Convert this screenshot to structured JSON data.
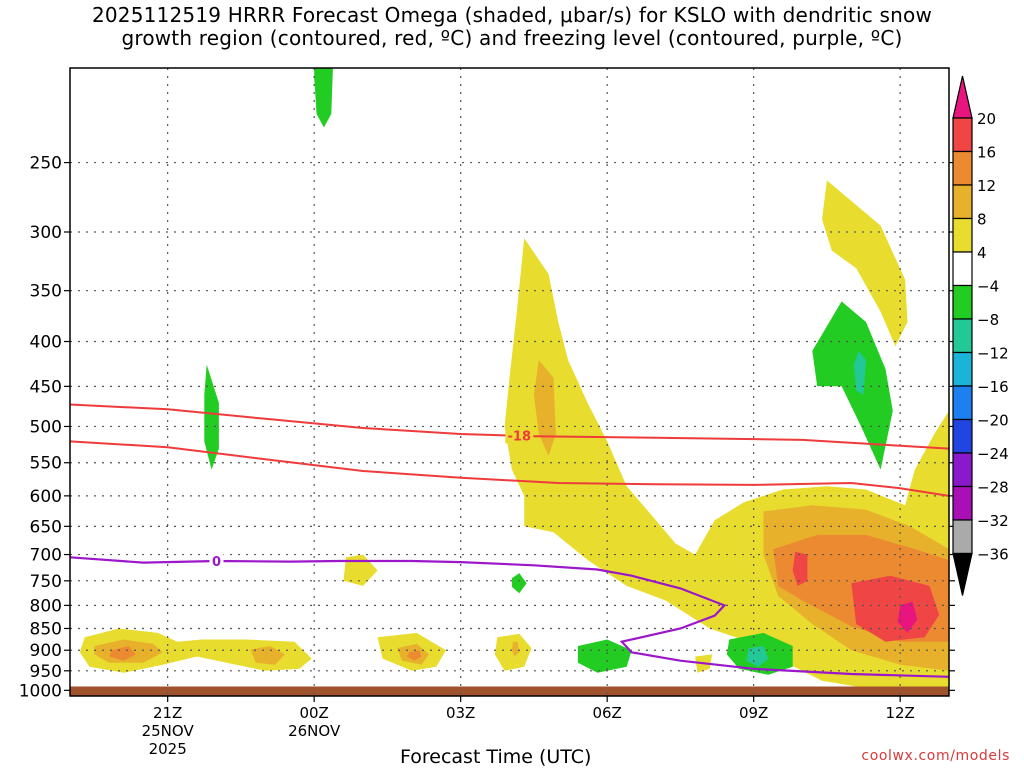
{
  "title": {
    "line1": "2025112519 HRRR Forecast Omega (shaded, μbar/s) for KSLO with dendritic snow",
    "line2": "growth region (contoured, red, ºC) and freezing level (contoured, purple, ºC)"
  },
  "credit": "coolwx.com/models",
  "chart_data": {
    "type": "heatmap",
    "title": "2025112519 HRRR Forecast Omega (shaded, μbar/s) for KSLO with dendritic snow growth region (contoured, red, ºC) and freezing level (contoured, purple, ºC)",
    "xlabel": "Forecast Time (UTC)",
    "ylabel": "",
    "x_range_hours_since_init": [
      0,
      18
    ],
    "y_scale": "log-pressure",
    "y_range_hPa": [
      195,
      1015
    ],
    "grid": true,
    "y_ticks": [
      250,
      300,
      350,
      400,
      450,
      500,
      550,
      600,
      650,
      700,
      750,
      800,
      850,
      900,
      950,
      1000
    ],
    "x_ticks": [
      {
        "hour": 2,
        "label": "21Z",
        "sub1": "25NOV",
        "sub2": "2025"
      },
      {
        "hour": 5,
        "label": "00Z",
        "sub1": "26NOV",
        "sub2": ""
      },
      {
        "hour": 8,
        "label": "03Z",
        "sub1": "",
        "sub2": ""
      },
      {
        "hour": 11,
        "label": "06Z",
        "sub1": "",
        "sub2": ""
      },
      {
        "hour": 14,
        "label": "09Z",
        "sub1": "",
        "sub2": ""
      },
      {
        "hour": 17,
        "label": "12Z",
        "sub1": "",
        "sub2": ""
      }
    ],
    "colorbar": {
      "levels": [
        20,
        16,
        12,
        8,
        4,
        -4,
        -8,
        -12,
        -16,
        -20,
        -24,
        -28,
        -32,
        -36
      ],
      "colors": [
        "#e8157f",
        "#f04545",
        "#eb8a30",
        "#e8b12c",
        "#e8dd2f",
        "#ffffff",
        "#22cc22",
        "#22c896",
        "#1ab4d8",
        "#1e7ff0",
        "#2145e0",
        "#8a19cc",
        "#a80fb5",
        "#aaaaaa",
        "#000000"
      ]
    },
    "surface_color": "#a0522d",
    "red_contours": [
      {
        "label": "-18",
        "label_at": [
          9.2,
          512
        ],
        "points": [
          [
            0,
            472
          ],
          [
            2,
            478
          ],
          [
            4,
            490
          ],
          [
            6,
            502
          ],
          [
            8,
            510
          ],
          [
            9.5,
            513
          ],
          [
            12,
            515
          ],
          [
            15,
            518
          ],
          [
            17,
            526
          ],
          [
            18,
            530
          ]
        ]
      },
      {
        "label": "",
        "points": [
          [
            0,
            520
          ],
          [
            2,
            528
          ],
          [
            4,
            545
          ],
          [
            6,
            562
          ],
          [
            8,
            572
          ],
          [
            10,
            580
          ],
          [
            12,
            582
          ],
          [
            14,
            583
          ],
          [
            16,
            580
          ],
          [
            17,
            588
          ],
          [
            18,
            600
          ]
        ]
      }
    ],
    "purple_contour": {
      "label": "0",
      "label_at": [
        3,
        712
      ],
      "points": [
        [
          0,
          705
        ],
        [
          1.5,
          715
        ],
        [
          3,
          712
        ],
        [
          4.5,
          713
        ],
        [
          5.5,
          712
        ],
        [
          7,
          712
        ],
        [
          8,
          714
        ],
        [
          9.5,
          720
        ],
        [
          10.8,
          728
        ],
        [
          11.5,
          740
        ],
        [
          12.5,
          765
        ],
        [
          13.4,
          800
        ],
        [
          13.2,
          822
        ],
        [
          12.5,
          850
        ],
        [
          11.3,
          880
        ],
        [
          11.5,
          905
        ],
        [
          12.5,
          925
        ],
        [
          14,
          945
        ],
        [
          16,
          958
        ],
        [
          18,
          965
        ]
      ]
    },
    "omega_regions": [
      {
        "value": -6,
        "points": [
          [
            5,
            184
          ],
          [
            5.4,
            184
          ],
          [
            5.35,
            220
          ],
          [
            5.2,
            228
          ],
          [
            5.05,
            220
          ],
          [
            5,
            200
          ]
        ]
      },
      {
        "value": -6,
        "points": [
          [
            2.8,
            425
          ],
          [
            3.05,
            470
          ],
          [
            3.05,
            530
          ],
          [
            2.9,
            560
          ],
          [
            2.75,
            520
          ],
          [
            2.75,
            460
          ]
        ]
      },
      {
        "value": 6,
        "points": [
          [
            9.3,
            305
          ],
          [
            9.8,
            335
          ],
          [
            10,
            380
          ],
          [
            10.2,
            420
          ],
          [
            10.6,
            470
          ],
          [
            11,
            520
          ],
          [
            11.4,
            585
          ],
          [
            12,
            640
          ],
          [
            12.4,
            680
          ],
          [
            12.8,
            700
          ],
          [
            13.2,
            640
          ],
          [
            13.8,
            610
          ],
          [
            14.6,
            590
          ],
          [
            15.5,
            585
          ],
          [
            16.3,
            590
          ],
          [
            17.1,
            615
          ],
          [
            17.3,
            560
          ],
          [
            17.7,
            510
          ],
          [
            18,
            480
          ],
          [
            18,
            990
          ],
          [
            16.1,
            990
          ],
          [
            15.4,
            975
          ],
          [
            14.5,
            920
          ],
          [
            13.9,
            880
          ],
          [
            13.1,
            850
          ],
          [
            12.2,
            790
          ],
          [
            11.4,
            760
          ],
          [
            10.6,
            710
          ],
          [
            9.9,
            660
          ],
          [
            9.3,
            650
          ],
          [
            9.3,
            600
          ],
          [
            9.05,
            560
          ],
          [
            8.9,
            500
          ],
          [
            9,
            440
          ],
          [
            9.15,
            370
          ]
        ]
      },
      {
        "value": 10,
        "points": [
          [
            9.6,
            420
          ],
          [
            9.9,
            440
          ],
          [
            9.95,
            510
          ],
          [
            9.8,
            540
          ],
          [
            9.6,
            510
          ],
          [
            9.5,
            460
          ]
        ]
      },
      {
        "value": 10,
        "points": [
          [
            14.2,
            625
          ],
          [
            15.2,
            615
          ],
          [
            16.3,
            622
          ],
          [
            17.2,
            650
          ],
          [
            18,
            690
          ],
          [
            18,
            950
          ],
          [
            17,
            935
          ],
          [
            16,
            900
          ],
          [
            15.2,
            840
          ],
          [
            14.5,
            780
          ],
          [
            14.2,
            700
          ]
        ]
      },
      {
        "value": 14,
        "points": [
          [
            14.4,
            690
          ],
          [
            15.3,
            665
          ],
          [
            16.3,
            665
          ],
          [
            17.3,
            690
          ],
          [
            18,
            710
          ],
          [
            18,
            880
          ],
          [
            17,
            880
          ],
          [
            16,
            845
          ],
          [
            15,
            790
          ],
          [
            14.5,
            760
          ]
        ]
      },
      {
        "value": 18,
        "points": [
          [
            16,
            755
          ],
          [
            16.8,
            740
          ],
          [
            17.6,
            760
          ],
          [
            17.8,
            820
          ],
          [
            17.5,
            870
          ],
          [
            16.7,
            880
          ],
          [
            16.1,
            840
          ]
        ]
      },
      {
        "value": 18,
        "points": [
          [
            14.85,
            695
          ],
          [
            15.1,
            700
          ],
          [
            15.1,
            750
          ],
          [
            14.9,
            760
          ],
          [
            14.8,
            730
          ]
        ]
      },
      {
        "value": 22,
        "points": [
          [
            17.0,
            800
          ],
          [
            17.25,
            792
          ],
          [
            17.35,
            830
          ],
          [
            17.15,
            860
          ],
          [
            16.95,
            835
          ]
        ]
      },
      {
        "value": 6,
        "points": [
          [
            15.5,
            262
          ],
          [
            16.6,
            295
          ],
          [
            17.1,
            340
          ],
          [
            17.15,
            380
          ],
          [
            16.9,
            405
          ],
          [
            16.6,
            370
          ],
          [
            16.1,
            330
          ],
          [
            15.6,
            315
          ],
          [
            15.4,
            290
          ]
        ]
      },
      {
        "value": -6,
        "points": [
          [
            15.8,
            360
          ],
          [
            16.3,
            380
          ],
          [
            16.7,
            430
          ],
          [
            16.85,
            480
          ],
          [
            16.6,
            560
          ],
          [
            16.2,
            500
          ],
          [
            15.8,
            450
          ],
          [
            15.3,
            450
          ],
          [
            15.2,
            410
          ]
        ]
      },
      {
        "value": -10,
        "points": [
          [
            16.15,
            410
          ],
          [
            16.3,
            420
          ],
          [
            16.25,
            460
          ],
          [
            16.1,
            455
          ],
          [
            16.05,
            425
          ]
        ]
      },
      {
        "value": 6,
        "points": [
          [
            0.3,
            870
          ],
          [
            1,
            850
          ],
          [
            1.8,
            860
          ],
          [
            2.2,
            880
          ],
          [
            2.7,
            875
          ],
          [
            3.6,
            875
          ],
          [
            4.6,
            880
          ],
          [
            4.95,
            920
          ],
          [
            4.7,
            945
          ],
          [
            4,
            950
          ],
          [
            3.4,
            935
          ],
          [
            2.6,
            915
          ],
          [
            1.9,
            935
          ],
          [
            1.1,
            955
          ],
          [
            0.4,
            940
          ],
          [
            0.2,
            905
          ]
        ]
      },
      {
        "value": 10,
        "points": [
          [
            0.5,
            890
          ],
          [
            1.1,
            875
          ],
          [
            1.7,
            885
          ],
          [
            1.9,
            905
          ],
          [
            1.5,
            930
          ],
          [
            0.8,
            930
          ],
          [
            0.5,
            910
          ]
        ]
      },
      {
        "value": 14,
        "points": [
          [
            0.85,
            900
          ],
          [
            1.2,
            890
          ],
          [
            1.35,
            910
          ],
          [
            1.1,
            925
          ],
          [
            0.8,
            915
          ]
        ]
      },
      {
        "value": 10,
        "points": [
          [
            3.7,
            898
          ],
          [
            4.1,
            890
          ],
          [
            4.4,
            910
          ],
          [
            4.2,
            935
          ],
          [
            3.8,
            930
          ]
        ]
      },
      {
        "value": 6,
        "points": [
          [
            6.3,
            870
          ],
          [
            7.1,
            860
          ],
          [
            7.7,
            900
          ],
          [
            7.5,
            940
          ],
          [
            7,
            950
          ],
          [
            6.4,
            920
          ]
        ]
      },
      {
        "value": 10,
        "points": [
          [
            6.7,
            895
          ],
          [
            7.1,
            885
          ],
          [
            7.35,
            910
          ],
          [
            7.2,
            935
          ],
          [
            6.8,
            925
          ]
        ]
      },
      {
        "value": 14,
        "points": [
          [
            6.95,
            905
          ],
          [
            7.15,
            900
          ],
          [
            7.2,
            915
          ],
          [
            7.05,
            925
          ],
          [
            6.9,
            915
          ]
        ]
      },
      {
        "value": 6,
        "points": [
          [
            5.65,
            705
          ],
          [
            6.0,
            700
          ],
          [
            6.3,
            730
          ],
          [
            6.0,
            760
          ],
          [
            5.6,
            750
          ]
        ]
      },
      {
        "value": 6,
        "points": [
          [
            8.75,
            870
          ],
          [
            9.2,
            862
          ],
          [
            9.45,
            895
          ],
          [
            9.3,
            940
          ],
          [
            8.9,
            950
          ],
          [
            8.7,
            910
          ]
        ]
      },
      {
        "value": 10,
        "points": [
          [
            9.07,
            880
          ],
          [
            9.17,
            880
          ],
          [
            9.2,
            905
          ],
          [
            9.1,
            915
          ],
          [
            9.05,
            900
          ]
        ]
      },
      {
        "value": -6,
        "points": [
          [
            9.05,
            745
          ],
          [
            9.2,
            735
          ],
          [
            9.35,
            755
          ],
          [
            9.2,
            775
          ],
          [
            9.05,
            762
          ]
        ]
      },
      {
        "value": -6,
        "points": [
          [
            10.4,
            890
          ],
          [
            11.0,
            875
          ],
          [
            11.5,
            900
          ],
          [
            11.4,
            940
          ],
          [
            10.8,
            955
          ],
          [
            10.4,
            930
          ]
        ]
      },
      {
        "value": 6,
        "points": [
          [
            12.8,
            915
          ],
          [
            13.15,
            910
          ],
          [
            13.1,
            945
          ],
          [
            12.85,
            955
          ]
        ]
      },
      {
        "value": -6,
        "points": [
          [
            13.5,
            875
          ],
          [
            14.2,
            860
          ],
          [
            14.8,
            890
          ],
          [
            14.8,
            940
          ],
          [
            14.3,
            960
          ],
          [
            13.7,
            945
          ],
          [
            13.45,
            910
          ]
        ]
      },
      {
        "value": -10,
        "points": [
          [
            13.9,
            895
          ],
          [
            14.2,
            890
          ],
          [
            14.3,
            920
          ],
          [
            14.1,
            940
          ],
          [
            13.85,
            925
          ]
        ]
      }
    ]
  }
}
